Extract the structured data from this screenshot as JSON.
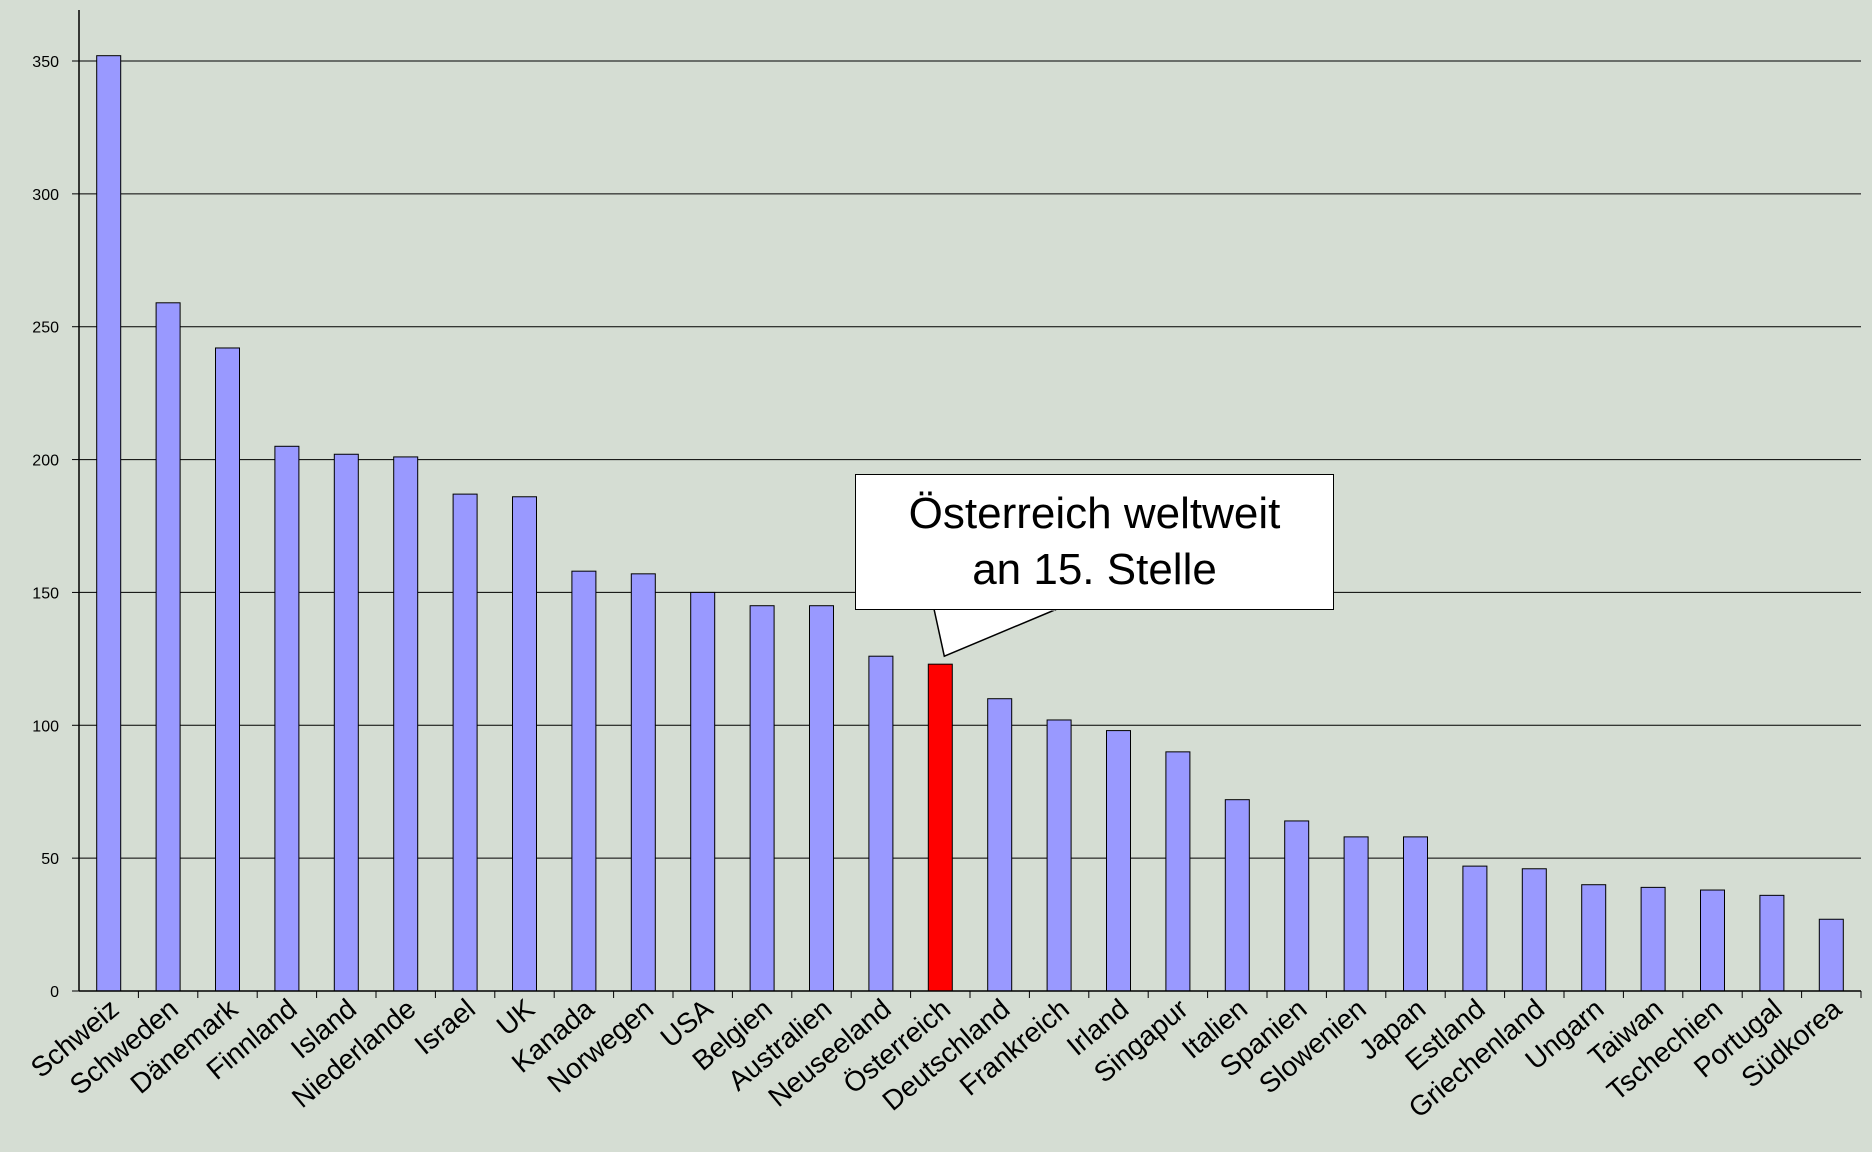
{
  "chart_data": {
    "type": "bar",
    "title": "",
    "xlabel": "",
    "ylabel": "",
    "ylim": [
      0,
      350
    ],
    "yticks": [
      0,
      50,
      100,
      150,
      200,
      250,
      300,
      350
    ],
    "grid": "horizontal",
    "categories": [
      "Schweiz",
      "Schweden",
      "Dänemark",
      "Finnland",
      "Island",
      "Niederlande",
      "Israel",
      "UK",
      "Kanada",
      "Norwegen",
      "USA",
      "Belgien",
      "Australien",
      "Neuseeland",
      "Österreich",
      "Deutschland",
      "Frankreich",
      "Irland",
      "Singapur",
      "Italien",
      "Spanien",
      "Slowenien",
      "Japan",
      "Estland",
      "Griechenland",
      "Ungarn",
      "Taiwan",
      "Tschechien",
      "Portugal",
      "Südkorea"
    ],
    "values": [
      352,
      259,
      242,
      205,
      202,
      201,
      187,
      186,
      158,
      157,
      150,
      145,
      145,
      126,
      123,
      110,
      102,
      98,
      90,
      72,
      64,
      58,
      58,
      47,
      46,
      40,
      39,
      38,
      36,
      27
    ],
    "highlight_index": 14,
    "colors": {
      "bar": "#9999ff",
      "highlight": "#ff0000",
      "background": "#d5ddd3"
    },
    "annotation": {
      "lines": [
        "Österreich weltweit",
        "an 15. Stelle"
      ],
      "target_category": "Österreich"
    }
  }
}
